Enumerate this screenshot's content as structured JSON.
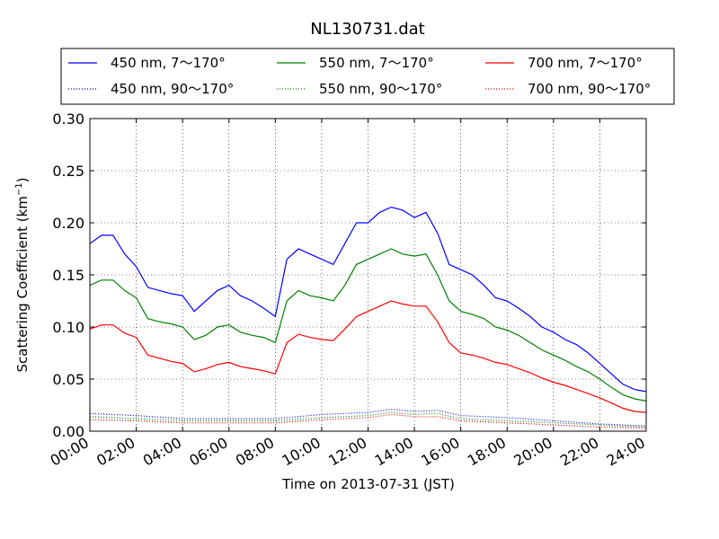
{
  "chart_data": {
    "type": "line",
    "title": "NL130731.dat",
    "xlabel": "Time on 2013-07-31 (JST)",
    "ylabel_main": "Scattering Coefficient (km",
    "ylabel_sup": "−1",
    "ylabel_end": ")",
    "xlim": [
      "00:00",
      "24:00"
    ],
    "ylim": [
      0.0,
      0.3
    ],
    "grid": true,
    "legend_placement": "top",
    "x_ticks": [
      "00:00",
      "02:00",
      "04:00",
      "06:00",
      "08:00",
      "10:00",
      "12:00",
      "14:00",
      "16:00",
      "18:00",
      "20:00",
      "22:00",
      "24:00"
    ],
    "y_ticks": [
      "0.00",
      "0.05",
      "0.10",
      "0.15",
      "0.20",
      "0.25",
      "0.30"
    ],
    "series": [
      {
        "name": "450 nm, 7～170°",
        "color": "#0000ff",
        "style": "solid",
        "x": [
          "00:00",
          "00:30",
          "01:00",
          "01:30",
          "02:00",
          "02:30",
          "03:00",
          "03:30",
          "04:00",
          "04:30",
          "05:00",
          "05:30",
          "06:00",
          "06:30",
          "07:00",
          "07:30",
          "08:00",
          "08:30",
          "09:00",
          "09:30",
          "10:00",
          "10:30",
          "11:00",
          "11:30",
          "12:00",
          "12:30",
          "13:00",
          "13:30",
          "14:00",
          "14:30",
          "15:00",
          "15:30",
          "16:00",
          "16:30",
          "17:00",
          "17:30",
          "18:00",
          "18:30",
          "19:00",
          "19:30",
          "20:00",
          "20:30",
          "21:00",
          "21:30",
          "22:00",
          "22:30",
          "23:00",
          "23:30",
          "24:00"
        ],
        "values": [
          0.18,
          0.188,
          0.188,
          0.17,
          0.158,
          0.138,
          0.135,
          0.132,
          0.13,
          0.115,
          0.125,
          0.135,
          0.14,
          0.13,
          0.125,
          0.118,
          0.11,
          0.165,
          0.175,
          0.17,
          0.165,
          0.16,
          0.18,
          0.2,
          0.2,
          0.21,
          0.215,
          0.212,
          0.205,
          0.21,
          0.19,
          0.16,
          0.155,
          0.15,
          0.14,
          0.128,
          0.125,
          0.118,
          0.11,
          0.1,
          0.095,
          0.088,
          0.083,
          0.075,
          0.065,
          0.055,
          0.045,
          0.04,
          0.038
        ]
      },
      {
        "name": "550 nm, 7～170°",
        "color": "#008000",
        "style": "solid",
        "x": [
          "00:00",
          "00:30",
          "01:00",
          "01:30",
          "02:00",
          "02:30",
          "03:00",
          "03:30",
          "04:00",
          "04:30",
          "05:00",
          "05:30",
          "06:00",
          "06:30",
          "07:00",
          "07:30",
          "08:00",
          "08:30",
          "09:00",
          "09:30",
          "10:00",
          "10:30",
          "11:00",
          "11:30",
          "12:00",
          "12:30",
          "13:00",
          "13:30",
          "14:00",
          "14:30",
          "15:00",
          "15:30",
          "16:00",
          "16:30",
          "17:00",
          "17:30",
          "18:00",
          "18:30",
          "19:00",
          "19:30",
          "20:00",
          "20:30",
          "21:00",
          "21:30",
          "22:00",
          "22:30",
          "23:00",
          "23:30",
          "24:00"
        ],
        "values": [
          0.14,
          0.145,
          0.145,
          0.135,
          0.128,
          0.108,
          0.105,
          0.103,
          0.1,
          0.088,
          0.092,
          0.1,
          0.102,
          0.095,
          0.092,
          0.09,
          0.085,
          0.125,
          0.135,
          0.13,
          0.128,
          0.125,
          0.14,
          0.16,
          0.165,
          0.17,
          0.175,
          0.17,
          0.168,
          0.17,
          0.15,
          0.125,
          0.115,
          0.112,
          0.108,
          0.1,
          0.097,
          0.092,
          0.085,
          0.078,
          0.073,
          0.068,
          0.062,
          0.057,
          0.05,
          0.042,
          0.035,
          0.031,
          0.029
        ]
      },
      {
        "name": "700 nm, 7～170°",
        "color": "#ff0000",
        "style": "solid",
        "x": [
          "00:00",
          "00:30",
          "01:00",
          "01:30",
          "02:00",
          "02:30",
          "03:00",
          "03:30",
          "04:00",
          "04:30",
          "05:00",
          "05:30",
          "06:00",
          "06:30",
          "07:00",
          "07:30",
          "08:00",
          "08:30",
          "09:00",
          "09:30",
          "10:00",
          "10:30",
          "11:00",
          "11:30",
          "12:00",
          "12:30",
          "13:00",
          "13:30",
          "14:00",
          "14:30",
          "15:00",
          "15:30",
          "16:00",
          "16:30",
          "17:00",
          "17:30",
          "18:00",
          "18:30",
          "19:00",
          "19:30",
          "20:00",
          "20:30",
          "21:00",
          "21:30",
          "22:00",
          "22:30",
          "23:00",
          "23:30",
          "24:00"
        ],
        "values": [
          0.098,
          0.102,
          0.102,
          0.094,
          0.09,
          0.073,
          0.07,
          0.067,
          0.065,
          0.057,
          0.06,
          0.064,
          0.066,
          0.062,
          0.06,
          0.058,
          0.055,
          0.085,
          0.093,
          0.09,
          0.088,
          0.087,
          0.098,
          0.11,
          0.115,
          0.12,
          0.125,
          0.122,
          0.12,
          0.12,
          0.105,
          0.085,
          0.075,
          0.073,
          0.07,
          0.066,
          0.064,
          0.06,
          0.056,
          0.051,
          0.047,
          0.044,
          0.04,
          0.036,
          0.032,
          0.027,
          0.022,
          0.019,
          0.018
        ]
      },
      {
        "name": "450 nm, 90～170°",
        "color": "#0000ff",
        "style": "dotted",
        "x": [
          "00:00",
          "02:00",
          "04:00",
          "06:00",
          "08:00",
          "10:00",
          "12:00",
          "13:00",
          "14:00",
          "15:00",
          "16:00",
          "18:00",
          "20:00",
          "22:00",
          "24:00"
        ],
        "values": [
          0.017,
          0.015,
          0.012,
          0.012,
          0.012,
          0.016,
          0.018,
          0.021,
          0.019,
          0.02,
          0.015,
          0.013,
          0.01,
          0.007,
          0.005
        ]
      },
      {
        "name": "550 nm, 90～170°",
        "color": "#008000",
        "style": "dotted",
        "x": [
          "00:00",
          "02:00",
          "04:00",
          "06:00",
          "08:00",
          "10:00",
          "12:00",
          "13:00",
          "14:00",
          "15:00",
          "16:00",
          "18:00",
          "20:00",
          "22:00",
          "24:00"
        ],
        "values": [
          0.014,
          0.012,
          0.01,
          0.01,
          0.01,
          0.013,
          0.015,
          0.018,
          0.016,
          0.017,
          0.012,
          0.01,
          0.008,
          0.006,
          0.004
        ]
      },
      {
        "name": "700 nm, 90～170°",
        "color": "#ff0000",
        "style": "dotted",
        "x": [
          "00:00",
          "02:00",
          "04:00",
          "06:00",
          "08:00",
          "10:00",
          "12:00",
          "13:00",
          "14:00",
          "15:00",
          "16:00",
          "18:00",
          "20:00",
          "22:00",
          "24:00"
        ],
        "values": [
          0.011,
          0.01,
          0.008,
          0.008,
          0.008,
          0.011,
          0.013,
          0.016,
          0.014,
          0.014,
          0.01,
          0.008,
          0.006,
          0.004,
          0.003
        ]
      }
    ]
  }
}
